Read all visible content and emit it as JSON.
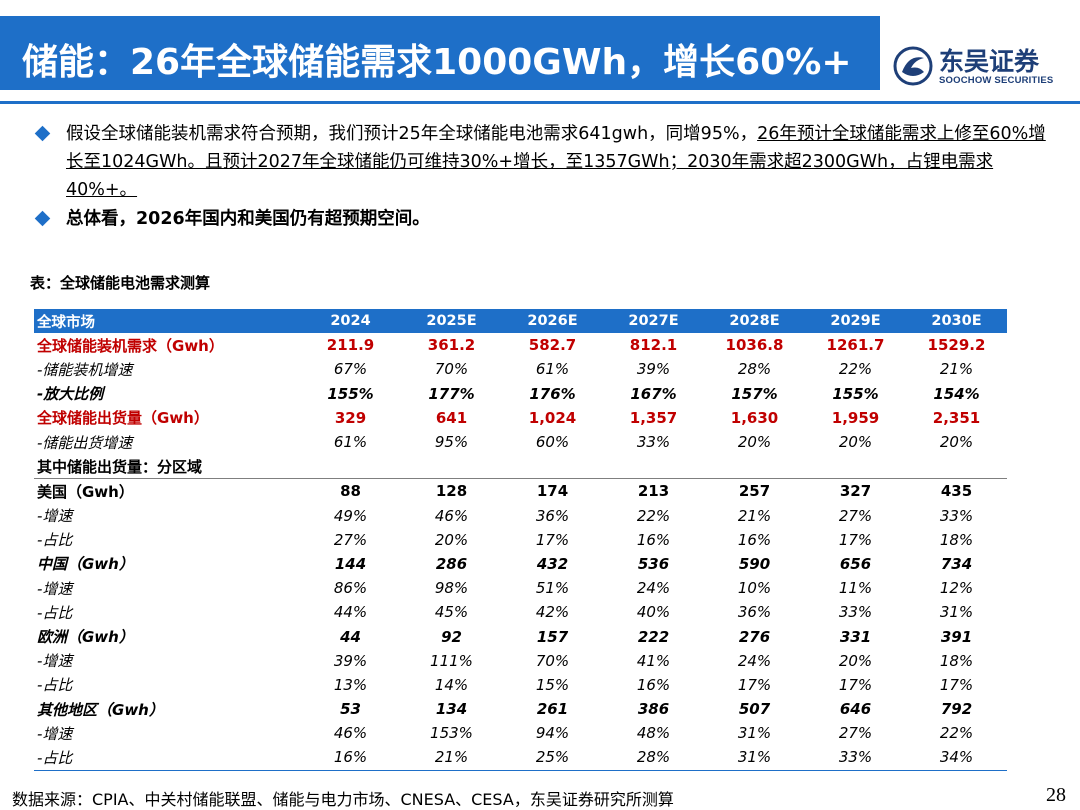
{
  "header": {
    "title": "储能：26年全球储能需求1000GWh，增长60%+",
    "logo_cn": "东吴证券",
    "logo_en": "SOOCHOW SECURITIES",
    "colors": {
      "accent": "#1e6fc8",
      "logo": "#1e3f78",
      "highlight_text": "#c00000"
    }
  },
  "bullets": {
    "b1_part1": "假设全球储能装机需求符合预期，我们预计25年全球储能电池需求641gwh，同增95%，",
    "b1_part2": "26年预计全球储能需求上修至60%增长至1024GWh。且预计2027年全球储能仍可维持30%+增长，至1357GWh；2030年需求超2300GWh，占锂电需求40%+。",
    "b2": "总体看，2026年国内和美国仍有超预期空间。"
  },
  "table": {
    "caption": "表：全球储能电池需求测算",
    "header": [
      "全球市场",
      "2024",
      "2025E",
      "2026E",
      "2027E",
      "2028E",
      "2029E",
      "2030E"
    ],
    "rows": [
      {
        "style": "red",
        "cells": [
          "全球储能装机需求（Gwh）",
          "211.9",
          "361.2",
          "582.7",
          "812.1",
          "1036.8",
          "1261.7",
          "1529.2"
        ]
      },
      {
        "style": "italic",
        "cells": [
          "-储能装机增速",
          "67%",
          "70%",
          "61%",
          "39%",
          "28%",
          "22%",
          "21%"
        ]
      },
      {
        "style": "bolditalic",
        "cells": [
          "-放大比例",
          "155%",
          "177%",
          "176%",
          "167%",
          "157%",
          "155%",
          "154%"
        ]
      },
      {
        "style": "red",
        "cells": [
          "全球储能出货量（Gwh）",
          "329",
          "641",
          "1,024",
          "1,357",
          "1,630",
          "1,959",
          "2,351"
        ]
      },
      {
        "style": "italic",
        "cells": [
          "-储能出货增速",
          "61%",
          "95%",
          "60%",
          "33%",
          "20%",
          "20%",
          "20%"
        ]
      },
      {
        "style": "bold rule",
        "cells": [
          "其中储能出货量：分区域",
          "",
          "",
          "",
          "",
          "",
          "",
          ""
        ]
      },
      {
        "style": "bold",
        "cells": [
          "美国（Gwh）",
          "88",
          "128",
          "174",
          "213",
          "257",
          "327",
          "435"
        ]
      },
      {
        "style": "italic",
        "cells": [
          "-增速",
          "49%",
          "46%",
          "36%",
          "22%",
          "21%",
          "27%",
          "33%"
        ]
      },
      {
        "style": "italic",
        "cells": [
          "-占比",
          "27%",
          "20%",
          "17%",
          "16%",
          "16%",
          "17%",
          "18%"
        ]
      },
      {
        "style": "bolditalic",
        "cells": [
          "中国（Gwh）",
          "144",
          "286",
          "432",
          "536",
          "590",
          "656",
          "734"
        ]
      },
      {
        "style": "italic",
        "cells": [
          "-增速",
          "86%",
          "98%",
          "51%",
          "24%",
          "10%",
          "11%",
          "12%"
        ]
      },
      {
        "style": "italic",
        "cells": [
          "-占比",
          "44%",
          "45%",
          "42%",
          "40%",
          "36%",
          "33%",
          "31%"
        ]
      },
      {
        "style": "bolditalic",
        "cells": [
          "欧洲（Gwh）",
          "44",
          "92",
          "157",
          "222",
          "276",
          "331",
          "391"
        ]
      },
      {
        "style": "italic",
        "cells": [
          "-增速",
          "39%",
          "111%",
          "70%",
          "41%",
          "24%",
          "20%",
          "18%"
        ]
      },
      {
        "style": "italic",
        "cells": [
          "-占比",
          "13%",
          "14%",
          "15%",
          "16%",
          "17%",
          "17%",
          "17%"
        ]
      },
      {
        "style": "bolditalic",
        "cells": [
          "其他地区（Gwh）",
          "53",
          "134",
          "261",
          "386",
          "507",
          "646",
          "792"
        ]
      },
      {
        "style": "italic",
        "cells": [
          "-增速",
          "46%",
          "153%",
          "94%",
          "48%",
          "31%",
          "27%",
          "22%"
        ]
      },
      {
        "style": "italic lastrow",
        "cells": [
          "-占比",
          "16%",
          "21%",
          "25%",
          "28%",
          "31%",
          "33%",
          "34%"
        ]
      }
    ]
  },
  "footer": {
    "source": "数据来源：CPIA、中关村储能联盟、储能与电力市场、CNESA、CESA，东吴证券研究所测算",
    "page_number": "28"
  }
}
